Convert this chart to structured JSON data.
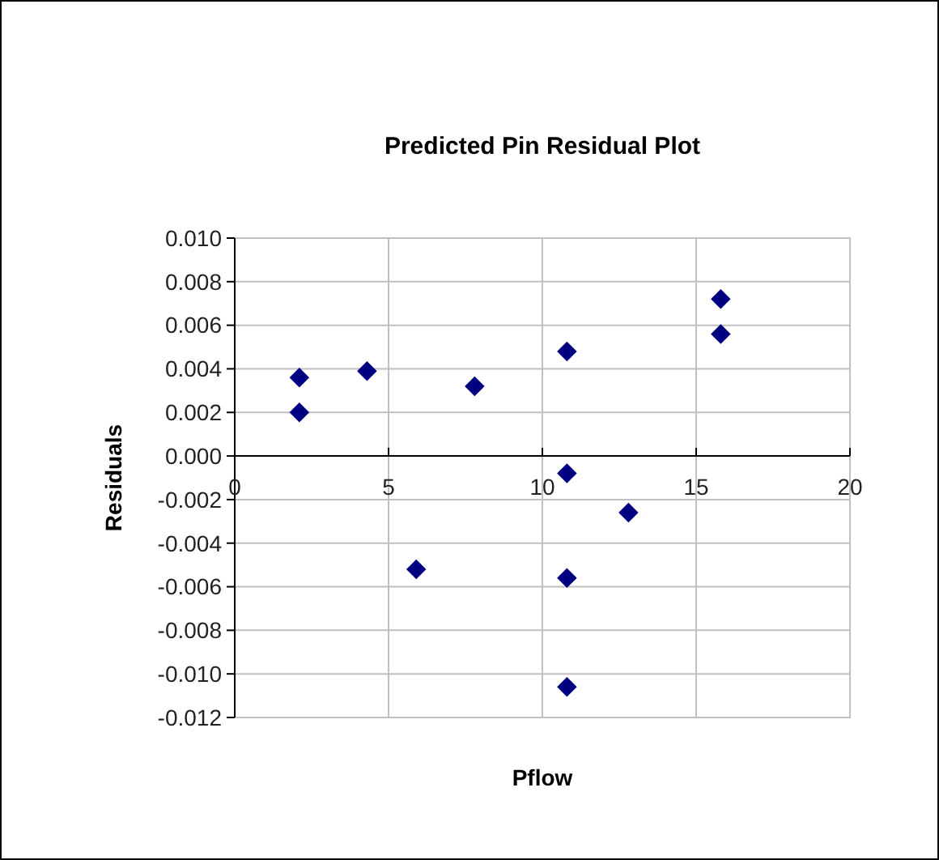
{
  "chart_data": {
    "type": "scatter",
    "title": "Predicted Pin Residual Plot",
    "xlabel": "Pflow",
    "ylabel": "Residuals",
    "x": [
      2.1,
      2.1,
      4.3,
      7.8,
      10.8,
      15.8,
      15.8,
      10.8,
      12.8,
      5.9,
      10.8,
      10.8
    ],
    "values": [
      0.0036,
      0.002,
      0.0039,
      0.0032,
      0.0048,
      0.0072,
      0.0056,
      -0.0008,
      -0.0026,
      -0.0052,
      -0.0056,
      -0.0106
    ],
    "color": "#000080",
    "marker": "diamond",
    "grid": true,
    "xlim": [
      0,
      20
    ],
    "xticks": [
      0,
      5,
      10,
      15,
      20
    ],
    "ylim": [
      -0.012,
      0.01
    ],
    "yticks": [
      {
        "value": -0.012,
        "label": "-0.012"
      },
      {
        "value": -0.01,
        "label": "-0.010"
      },
      {
        "value": -0.008,
        "label": "-0.008"
      },
      {
        "value": -0.006,
        "label": "-0.006"
      },
      {
        "value": -0.004,
        "label": "-0.004"
      },
      {
        "value": -0.002,
        "label": "-0.002"
      },
      {
        "value": 0,
        "label": "0.000"
      },
      {
        "value": 0.002,
        "label": "0.002"
      },
      {
        "value": 0.004,
        "label": "0.004"
      },
      {
        "value": 0.006,
        "label": "0.006"
      },
      {
        "value": 0.008,
        "label": "0.008"
      },
      {
        "value": 0.01,
        "label": "0.010"
      }
    ]
  }
}
